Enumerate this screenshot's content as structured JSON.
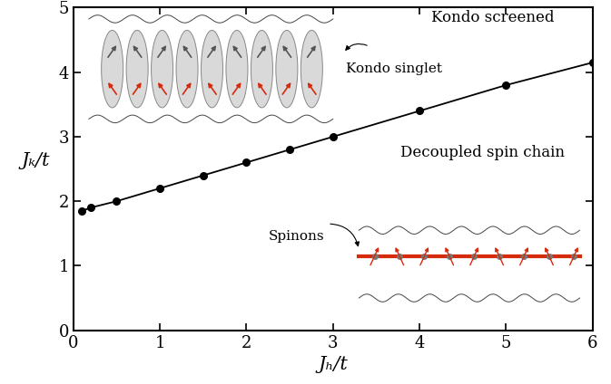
{
  "chart_data": {
    "type": "line",
    "x": [
      0.1,
      0.2,
      0.5,
      1.0,
      1.5,
      2.0,
      2.5,
      3.0,
      4.0,
      5.0,
      6.0
    ],
    "values": [
      1.85,
      1.9,
      2.0,
      2.2,
      2.4,
      2.6,
      2.8,
      3.0,
      3.4,
      3.8,
      4.15
    ],
    "color": "#000000",
    "marker": "o",
    "line_style": "solid",
    "xlabel": "Jₕ/t",
    "ylabel": "Jₖ/t",
    "xlim": [
      0,
      6
    ],
    "ylim": [
      0,
      5
    ],
    "xticks": [
      0,
      1,
      2,
      3,
      4,
      5,
      6
    ],
    "yticks": [
      0,
      1,
      2,
      3,
      4,
      5
    ],
    "grid": false,
    "annotations": [
      "Kondo screened",
      "Kondo singlet",
      "Decoupled spin chain",
      "Spinons"
    ]
  }
}
